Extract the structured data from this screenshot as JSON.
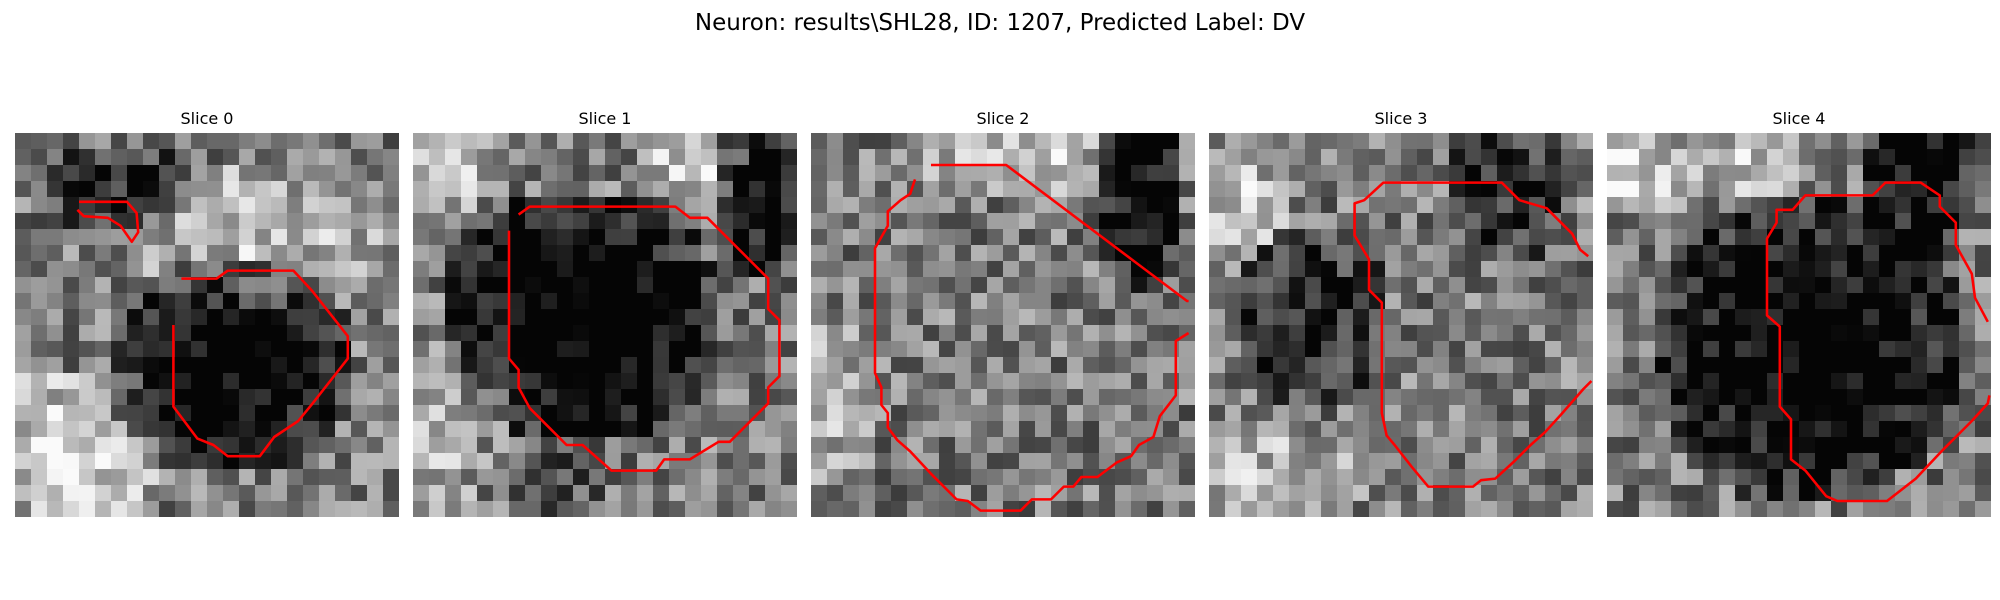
{
  "figure": {
    "suptitle": "Neuron: results\\SHL28, ID: 1207, Predicted Label: DV",
    "contour_color": "#ff0000",
    "grid_cells": 24,
    "panels": [
      {
        "title": "Slice 0",
        "seed": 11,
        "dark": [
          [
            13,
            14,
            8,
            7,
            -0.55
          ],
          [
            6,
            3,
            5,
            3,
            -0.35
          ]
        ],
        "bright": [
          [
            3,
            19,
            7,
            5,
            0.35
          ],
          [
            15,
            6,
            8,
            5,
            0.25
          ]
        ],
        "contours": [
          [
            [
              4.0,
              4.3
            ],
            [
              7.0,
              4.3
            ],
            [
              7.6,
              5.0
            ],
            [
              7.7,
              6.2
            ],
            [
              7.3,
              6.8
            ],
            [
              6.6,
              5.8
            ],
            [
              5.8,
              5.3
            ],
            [
              4.3,
              5.2
            ],
            [
              3.9,
              4.8
            ]
          ],
          [
            [
              10.4,
              9.1
            ],
            [
              12.6,
              9.1
            ],
            [
              13.3,
              8.6
            ],
            [
              17.4,
              8.6
            ],
            [
              18.6,
              9.9
            ],
            [
              19.7,
              11.3
            ],
            [
              20.8,
              12.7
            ],
            [
              20.8,
              14.1
            ],
            [
              19.7,
              15.5
            ],
            [
              18.6,
              16.9
            ],
            [
              17.7,
              18.0
            ],
            [
              16.2,
              19.0
            ],
            [
              15.3,
              20.2
            ],
            [
              13.3,
              20.2
            ],
            [
              12.4,
              19.5
            ],
            [
              11.4,
              19.1
            ],
            [
              9.9,
              17.1
            ],
            [
              9.9,
              12.0
            ]
          ]
        ]
      },
      {
        "title": "Slice 1",
        "seed": 23,
        "dark": [
          [
            10,
            11,
            9,
            8,
            -0.6
          ],
          [
            21,
            3,
            3,
            6,
            -0.5
          ],
          [
            7,
            20,
            5,
            4,
            -0.2
          ]
        ],
        "bright": [
          [
            1,
            1,
            4,
            4,
            0.3
          ],
          [
            17,
            1,
            4,
            3,
            0.3
          ],
          [
            2,
            18,
            6,
            6,
            0.25
          ]
        ],
        "contours": [
          [
            [
              6.6,
              5.1
            ],
            [
              7.3,
              4.6
            ],
            [
              16.4,
              4.6
            ],
            [
              17.3,
              5.3
            ],
            [
              18.4,
              5.3
            ],
            [
              22.2,
              9.1
            ],
            [
              22.2,
              11.0
            ],
            [
              22.9,
              11.7
            ],
            [
              22.9,
              15.2
            ],
            [
              22.2,
              15.9
            ],
            [
              22.2,
              16.9
            ],
            [
              19.8,
              19.3
            ],
            [
              19.1,
              19.3
            ],
            [
              17.3,
              20.4
            ],
            [
              15.7,
              20.4
            ],
            [
              15.2,
              21.1
            ],
            [
              12.4,
              21.1
            ],
            [
              10.6,
              19.5
            ],
            [
              9.6,
              19.5
            ],
            [
              8.4,
              18.3
            ],
            [
              7.3,
              17.2
            ],
            [
              6.6,
              15.9
            ],
            [
              6.6,
              14.8
            ],
            [
              6.0,
              14.1
            ],
            [
              6.0,
              6.1
            ]
          ]
        ]
      },
      {
        "title": "Slice 2",
        "seed": 37,
        "dark": [
          [
            20,
            3,
            3,
            7,
            -0.5
          ]
        ],
        "bright": [
          [
            12,
            1,
            7,
            3,
            0.3
          ],
          [
            1,
            16,
            3,
            6,
            0.2
          ]
        ],
        "contours": [
          [
            [
              7.5,
              2.0
            ],
            [
              12.2,
              2.0
            ],
            [
              22.7,
              9.9
            ],
            [
              23.5,
              10.5
            ],
            [
              23.6,
              10.5
            ]
          ],
          [
            [
              23.6,
              12.5
            ],
            [
              22.8,
              13.0
            ],
            [
              22.8,
              16.4
            ],
            [
              21.8,
              17.7
            ],
            [
              21.4,
              19.0
            ],
            [
              20.5,
              19.5
            ],
            [
              20.0,
              20.2
            ],
            [
              19.1,
              20.6
            ],
            [
              17.9,
              21.5
            ],
            [
              16.9,
              21.5
            ],
            [
              16.4,
              22.1
            ],
            [
              15.8,
              22.1
            ],
            [
              15.0,
              22.9
            ],
            [
              13.8,
              22.9
            ],
            [
              13.1,
              23.6
            ],
            [
              10.6,
              23.6
            ],
            [
              9.8,
              23.0
            ],
            [
              9.1,
              22.9
            ],
            [
              7.5,
              21.3
            ],
            [
              6.2,
              19.9
            ],
            [
              5.4,
              19.2
            ],
            [
              4.8,
              18.4
            ],
            [
              4.8,
              17.5
            ],
            [
              4.4,
              17.0
            ],
            [
              4.4,
              15.9
            ],
            [
              4.0,
              15.0
            ],
            [
              4.0,
              7.2
            ],
            [
              4.8,
              5.8
            ],
            [
              4.8,
              4.9
            ],
            [
              5.6,
              4.2
            ],
            [
              6.2,
              3.8
            ],
            [
              6.5,
              2.9
            ]
          ]
        ]
      },
      {
        "title": "Slice 3",
        "seed": 51,
        "dark": [
          [
            6,
            11,
            5,
            6,
            -0.35
          ],
          [
            18,
            3,
            4,
            5,
            -0.3
          ]
        ],
        "bright": [
          [
            2,
            4,
            3,
            3,
            0.3
          ],
          [
            4,
            21,
            6,
            3,
            0.25
          ]
        ],
        "contours": [
          [
            [
              23.7,
              7.7
            ],
            [
              23.2,
              7.3
            ],
            [
              22.7,
              6.3
            ],
            [
              21.1,
              4.7
            ],
            [
              19.4,
              4.2
            ],
            [
              18.3,
              3.1
            ],
            [
              10.9,
              3.1
            ],
            [
              9.7,
              4.2
            ],
            [
              9.1,
              4.4
            ],
            [
              9.1,
              6.4
            ],
            [
              10.0,
              7.9
            ],
            [
              10.0,
              9.8
            ],
            [
              10.8,
              10.6
            ],
            [
              10.8,
              17.5
            ],
            [
              11.1,
              18.9
            ],
            [
              11.6,
              19.5
            ],
            [
              12.7,
              20.9
            ],
            [
              13.7,
              22.1
            ],
            [
              16.5,
              22.1
            ],
            [
              17.0,
              21.7
            ],
            [
              17.9,
              21.6
            ],
            [
              19.1,
              20.5
            ],
            [
              20.1,
              19.5
            ],
            [
              21.0,
              18.7
            ],
            [
              22.0,
              17.6
            ],
            [
              23.4,
              16.0
            ],
            [
              23.9,
              15.5
            ]
          ]
        ]
      },
      {
        "title": "Slice 4",
        "seed": 67,
        "dark": [
          [
            12,
            13,
            10,
            10,
            -0.55
          ],
          [
            19,
            2,
            4,
            6,
            -0.5
          ]
        ],
        "bright": [
          [
            1,
            2,
            5,
            3,
            0.35
          ],
          [
            9,
            1,
            4,
            3,
            0.3
          ]
        ],
        "contours": [
          [
            [
              23.8,
              11.8
            ],
            [
              23.0,
              10.3
            ],
            [
              22.8,
              8.8
            ],
            [
              21.8,
              7.0
            ],
            [
              21.8,
              5.6
            ],
            [
              20.8,
              4.6
            ],
            [
              20.8,
              3.9
            ],
            [
              19.6,
              3.1
            ],
            [
              17.4,
              3.1
            ],
            [
              16.6,
              3.9
            ],
            [
              12.4,
              3.9
            ],
            [
              11.6,
              4.8
            ],
            [
              10.6,
              4.8
            ],
            [
              10.6,
              5.6
            ],
            [
              10.0,
              6.6
            ],
            [
              10.0,
              11.4
            ],
            [
              10.8,
              12.1
            ],
            [
              10.8,
              17.1
            ],
            [
              11.5,
              17.9
            ],
            [
              11.5,
              20.4
            ],
            [
              12.4,
              21.1
            ],
            [
              13.7,
              22.7
            ],
            [
              14.4,
              23.0
            ],
            [
              17.5,
              23.0
            ],
            [
              19.3,
              21.6
            ],
            [
              21.0,
              19.8
            ],
            [
              22.8,
              18.0
            ],
            [
              23.8,
              16.9
            ],
            [
              23.9,
              16.4
            ]
          ]
        ]
      }
    ]
  }
}
